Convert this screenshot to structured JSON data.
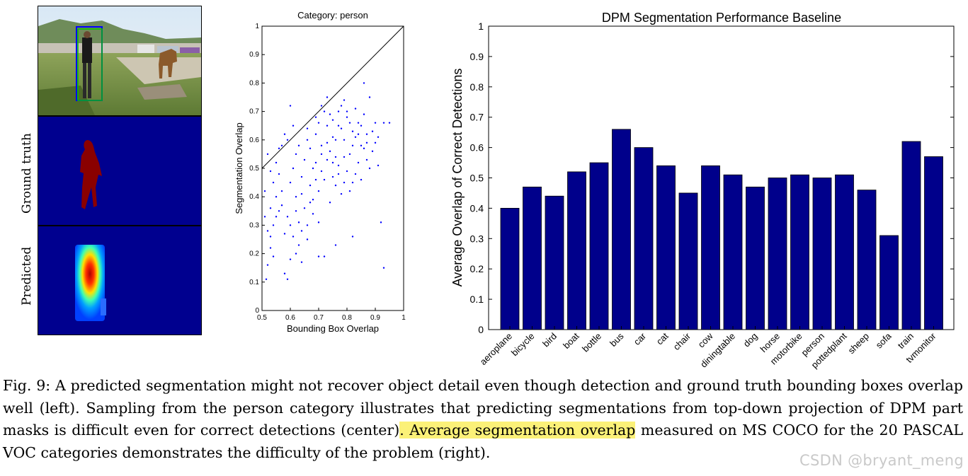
{
  "figure_left": {
    "row_labels": [
      "Ground truth",
      "Predicted"
    ]
  },
  "chart_data": [
    {
      "type": "scatter",
      "title": "Category: person",
      "xlabel": "Bounding Box Overlap",
      "ylabel": "Segmentation Overlap",
      "xlim": [
        0.5,
        1
      ],
      "ylim": [
        0,
        1
      ],
      "xticks": [
        "0.5",
        "0.6",
        "0.7",
        "0.8",
        "0.9",
        "1"
      ],
      "yticks": [
        "0",
        "0.1",
        "0.2",
        "0.3",
        "0.4",
        "0.5",
        "0.6",
        "0.7",
        "0.8",
        "0.9",
        "1"
      ],
      "reference_line": {
        "from": [
          0.5,
          0.5
        ],
        "to": [
          1,
          1
        ]
      },
      "points": [
        [
          0.51,
          0.42
        ],
        [
          0.52,
          0.55
        ],
        [
          0.53,
          0.49
        ],
        [
          0.51,
          0.33
        ],
        [
          0.52,
          0.28
        ],
        [
          0.53,
          0.36
        ],
        [
          0.54,
          0.45
        ],
        [
          0.55,
          0.52
        ],
        [
          0.56,
          0.48
        ],
        [
          0.57,
          0.58
        ],
        [
          0.58,
          0.62
        ],
        [
          0.55,
          0.4
        ],
        [
          0.54,
          0.3
        ],
        [
          0.53,
          0.22
        ],
        [
          0.52,
          0.16
        ],
        [
          0.515,
          0.11
        ],
        [
          0.54,
          0.19
        ],
        [
          0.56,
          0.35
        ],
        [
          0.57,
          0.42
        ],
        [
          0.58,
          0.27
        ],
        [
          0.59,
          0.33
        ],
        [
          0.6,
          0.45
        ],
        [
          0.61,
          0.5
        ],
        [
          0.62,
          0.55
        ],
        [
          0.6,
          0.72
        ],
        [
          0.61,
          0.65
        ],
        [
          0.62,
          0.4
        ],
        [
          0.63,
          0.31
        ],
        [
          0.64,
          0.47
        ],
        [
          0.65,
          0.53
        ],
        [
          0.66,
          0.6
        ],
        [
          0.67,
          0.57
        ],
        [
          0.68,
          0.5
        ],
        [
          0.69,
          0.62
        ],
        [
          0.7,
          0.66
        ],
        [
          0.71,
          0.58
        ],
        [
          0.72,
          0.7
        ],
        [
          0.73,
          0.75
        ],
        [
          0.74,
          0.69
        ],
        [
          0.75,
          0.61
        ],
        [
          0.76,
          0.54
        ],
        [
          0.77,
          0.65
        ],
        [
          0.78,
          0.72
        ],
        [
          0.79,
          0.6
        ],
        [
          0.8,
          0.68
        ],
        [
          0.81,
          0.55
        ],
        [
          0.82,
          0.63
        ],
        [
          0.83,
          0.71
        ],
        [
          0.84,
          0.66
        ],
        [
          0.85,
          0.58
        ],
        [
          0.86,
          0.8
        ],
        [
          0.87,
          0.62
        ],
        [
          0.88,
          0.75
        ],
        [
          0.89,
          0.56
        ],
        [
          0.9,
          0.66
        ],
        [
          0.91,
          0.51
        ],
        [
          0.93,
          0.66
        ],
        [
          0.92,
          0.31
        ],
        [
          0.93,
          0.15
        ],
        [
          0.62,
          0.2
        ],
        [
          0.66,
          0.25
        ],
        [
          0.7,
          0.31
        ],
        [
          0.72,
          0.19
        ],
        [
          0.74,
          0.38
        ],
        [
          0.76,
          0.44
        ],
        [
          0.78,
          0.41
        ],
        [
          0.8,
          0.49
        ],
        [
          0.82,
          0.45
        ],
        [
          0.84,
          0.52
        ],
        [
          0.86,
          0.57
        ],
        [
          0.88,
          0.5
        ],
        [
          0.64,
          0.41
        ],
        [
          0.65,
          0.36
        ],
        [
          0.67,
          0.44
        ],
        [
          0.68,
          0.39
        ],
        [
          0.69,
          0.46
        ],
        [
          0.71,
          0.49
        ],
        [
          0.73,
          0.53
        ],
        [
          0.75,
          0.47
        ],
        [
          0.77,
          0.51
        ],
        [
          0.79,
          0.54
        ],
        [
          0.58,
          0.13
        ],
        [
          0.59,
          0.11
        ],
        [
          0.6,
          0.18
        ],
        [
          0.61,
          0.26
        ],
        [
          0.63,
          0.23
        ],
        [
          0.66,
          0.3
        ],
        [
          0.68,
          0.34
        ],
        [
          0.7,
          0.42
        ],
        [
          0.72,
          0.46
        ],
        [
          0.74,
          0.56
        ],
        [
          0.76,
          0.6
        ],
        [
          0.78,
          0.64
        ],
        [
          0.8,
          0.7
        ],
        [
          0.82,
          0.58
        ],
        [
          0.84,
          0.62
        ],
        [
          0.86,
          0.69
        ],
        [
          0.56,
          0.57
        ],
        [
          0.59,
          0.6
        ],
        [
          0.63,
          0.58
        ],
        [
          0.66,
          0.64
        ],
        [
          0.69,
          0.68
        ],
        [
          0.71,
          0.72
        ],
        [
          0.73,
          0.65
        ],
        [
          0.75,
          0.67
        ],
        [
          0.77,
          0.7
        ],
        [
          0.79,
          0.74
        ],
        [
          0.81,
          0.66
        ],
        [
          0.83,
          0.61
        ],
        [
          0.85,
          0.65
        ],
        [
          0.87,
          0.59
        ],
        [
          0.89,
          0.63
        ],
        [
          0.53,
          0.26
        ],
        [
          0.55,
          0.33
        ],
        [
          0.57,
          0.37
        ],
        [
          0.6,
          0.3
        ],
        [
          0.62,
          0.35
        ],
        [
          0.64,
          0.28
        ],
        [
          0.67,
          0.38
        ],
        [
          0.69,
          0.52
        ],
        [
          0.71,
          0.55
        ],
        [
          0.73,
          0.59
        ],
        [
          0.75,
          0.52
        ],
        [
          0.77,
          0.48
        ],
        [
          0.79,
          0.45
        ],
        [
          0.81,
          0.42
        ],
        [
          0.83,
          0.48
        ],
        [
          0.85,
          0.46
        ],
        [
          0.87,
          0.53
        ],
        [
          0.9,
          0.59
        ],
        [
          0.91,
          0.61
        ],
        [
          0.95,
          0.66
        ],
        [
          0.82,
          0.26
        ],
        [
          0.76,
          0.23
        ],
        [
          0.7,
          0.19
        ],
        [
          0.64,
          0.17
        ]
      ]
    },
    {
      "type": "bar",
      "title": "DPM Segmentation Performance Baseline",
      "xlabel": "",
      "ylabel": "Average Overlap of Correct Detections",
      "ylim": [
        0,
        1
      ],
      "yticks": [
        "0",
        "0.1",
        "0.2",
        "0.3",
        "0.4",
        "0.5",
        "0.6",
        "0.7",
        "0.8",
        "0.9",
        "1"
      ],
      "categories": [
        "aeroplane",
        "bicycle",
        "bird",
        "boat",
        "bottle",
        "bus",
        "car",
        "cat",
        "chair",
        "cow",
        "diningtable",
        "dog",
        "horse",
        "motorbike",
        "person",
        "pottedplant",
        "sheep",
        "sofa",
        "train",
        "tvmonitor"
      ],
      "values": [
        0.4,
        0.47,
        0.44,
        0.52,
        0.55,
        0.66,
        0.6,
        0.54,
        0.45,
        0.54,
        0.51,
        0.47,
        0.5,
        0.51,
        0.5,
        0.51,
        0.46,
        0.31,
        0.62,
        0.57
      ],
      "bar_color": "#00008b"
    }
  ],
  "caption": {
    "part1": "Fig. 9: A predicted segmentation might not recover object detail even though detection and ground truth bounding boxes overlap well (left). Sampling from the person category illustrates that predicting segmentations from top-down projection of DPM part masks is difficult even for correct detections (center)",
    "highlight": ". Average segmentation overlap",
    "part2": " measured on MS COCO for the 20 PASCAL VOC categories demonstrates the difficulty of the problem (right)."
  },
  "watermark": "CSDN @bryant_meng"
}
